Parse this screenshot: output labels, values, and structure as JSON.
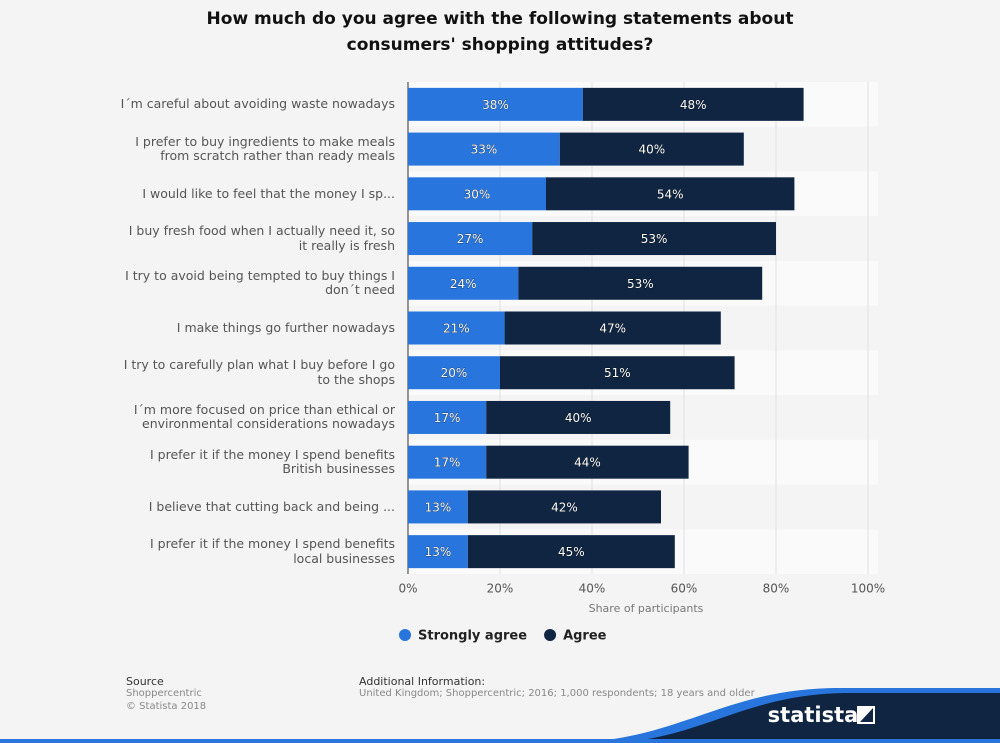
{
  "chart_data": {
    "type": "stacked-bar-horizontal",
    "title": "How much do you agree with the following statements about consumers' shopping attitudes?",
    "x_label": "Share of participants",
    "categories": [
      "I´m careful about avoiding waste nowadays",
      "I prefer to buy ingredients to make meals from scratch rather than ready meals",
      "I would like to feel that the money I sp...",
      "I buy fresh food when I actually need it, so it really is fresh",
      "I try to avoid being tempted to buy things I don´t need",
      "I make things go further nowadays",
      "I try to carefully plan what I buy before I go to the shops",
      "I´m more focused on price than ethical or environmental considerations nowadays",
      "I prefer it if the money I spend benefits British businesses",
      "I believe that cutting back and being ...",
      "I prefer it if the money I spend benefits local businesses"
    ],
    "series": [
      {
        "name": "Strongly agree",
        "color": "#2876dd",
        "values": [
          38,
          33,
          30,
          27,
          24,
          21,
          20,
          17,
          17,
          13,
          13
        ],
        "value_labels": [
          "38%",
          "33%",
          "30%",
          "27%",
          "24%",
          "21%",
          "20%",
          "17%",
          "17%",
          "13%",
          "13%"
        ]
      },
      {
        "name": "Agree",
        "color": "#0f2541",
        "values": [
          48,
          40,
          54,
          53,
          53,
          47,
          51,
          40,
          44,
          42,
          45
        ],
        "value_labels": [
          "48%",
          "40%",
          "54%",
          "53%",
          "53%",
          "47%",
          "51%",
          "40%",
          "44%",
          "42%",
          "45%"
        ]
      }
    ],
    "xlim": [
      0,
      100
    ],
    "xticks": [
      {
        "value": 0,
        "label": "0%"
      },
      {
        "value": 20,
        "label": "20%"
      },
      {
        "value": 40,
        "label": "40%"
      },
      {
        "value": 60,
        "label": "60%"
      },
      {
        "value": 80,
        "label": "80%"
      },
      {
        "value": 100,
        "label": "100%"
      }
    ],
    "grid": true,
    "legend": "bottom"
  },
  "footer": {
    "source_label": "Source",
    "source": "Shoppercentric",
    "copyright": "© Statista 2018",
    "info_label": "Additional Information:",
    "info": "United Kingdom; Shoppercentric; 2016; 1,000 respondents; 18 years and older",
    "brand": "statista"
  }
}
